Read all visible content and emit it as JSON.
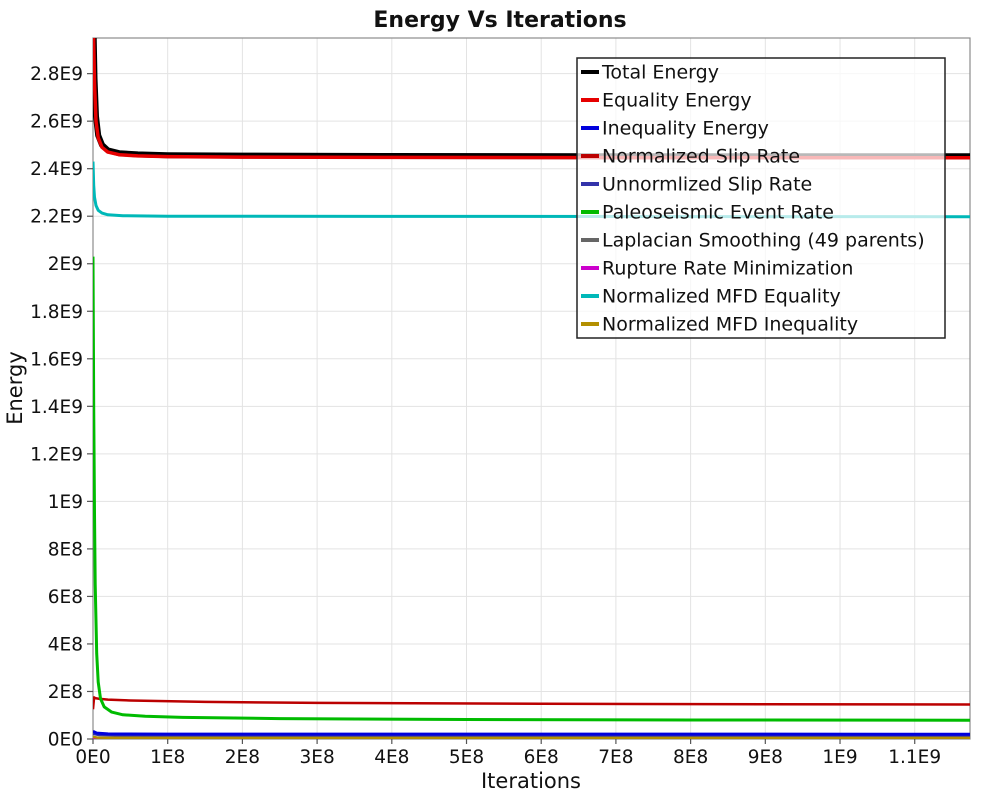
{
  "chart_data": {
    "type": "line",
    "title": "Energy Vs Iterations",
    "xlabel": "Iterations",
    "ylabel": "Energy",
    "xlim": [
      0,
      1174000000.0
    ],
    "ylim": [
      0,
      2950000000.0
    ],
    "grid": true,
    "legend_position": "top-right-inside",
    "legend_background": "rgba(255,255,255,0.72)",
    "x_ticks": [
      {
        "label": "0E0",
        "value": 0
      },
      {
        "label": "1E8",
        "value": 100000000.0
      },
      {
        "label": "2E8",
        "value": 200000000.0
      },
      {
        "label": "3E8",
        "value": 300000000.0
      },
      {
        "label": "4E8",
        "value": 400000000.0
      },
      {
        "label": "5E8",
        "value": 500000000.0
      },
      {
        "label": "6E8",
        "value": 600000000.0
      },
      {
        "label": "7E8",
        "value": 700000000.0
      },
      {
        "label": "8E8",
        "value": 800000000.0
      },
      {
        "label": "9E8",
        "value": 900000000.0
      },
      {
        "label": "1E9",
        "value": 1000000000.0
      },
      {
        "label": "1.1E9",
        "value": 1100000000.0
      }
    ],
    "y_ticks": [
      {
        "label": "0E0",
        "value": 0
      },
      {
        "label": "2E8",
        "value": 200000000.0
      },
      {
        "label": "4E8",
        "value": 400000000.0
      },
      {
        "label": "6E8",
        "value": 600000000.0
      },
      {
        "label": "8E8",
        "value": 800000000.0
      },
      {
        "label": "1E9",
        "value": 1000000000.0
      },
      {
        "label": "1.2E9",
        "value": 1200000000.0
      },
      {
        "label": "1.4E9",
        "value": 1400000000.0
      },
      {
        "label": "1.6E9",
        "value": 1600000000.0
      },
      {
        "label": "1.8E9",
        "value": 1800000000.0
      },
      {
        "label": "2E9",
        "value": 2000000000.0
      },
      {
        "label": "2.2E9",
        "value": 2200000000.0
      },
      {
        "label": "2.4E9",
        "value": 2400000000.0
      },
      {
        "label": "2.6E9",
        "value": 2600000000.0
      },
      {
        "label": "2.8E9",
        "value": 2800000000.0
      }
    ],
    "legend": [
      {
        "label": "Total Energy",
        "color": "#000000"
      },
      {
        "label": "Equality Energy",
        "color": "#e60000"
      },
      {
        "label": "Inequality Energy",
        "color": "#0000dd"
      },
      {
        "label": "Normalized Slip Rate",
        "color": "#bb0000"
      },
      {
        "label": "Unnormlized Slip Rate",
        "color": "#3333aa"
      },
      {
        "label": "Paleoseismic Event Rate",
        "color": "#00bb00"
      },
      {
        "label": "Laplacian Smoothing (49 parents)",
        "color": "#666666"
      },
      {
        "label": "Rupture Rate Minimization",
        "color": "#cc00cc"
      },
      {
        "label": "Normalized MFD Equality",
        "color": "#00b8b8"
      },
      {
        "label": "Normalized MFD Inequality",
        "color": "#b38f00"
      }
    ],
    "series": [
      {
        "name": "Laplacian Smoothing (49 parents)",
        "color": "#666666",
        "width": 2.5,
        "points": [
          [
            0,
            1200000.0
          ],
          [
            1174000000.0,
            1200000.0
          ]
        ]
      },
      {
        "name": "Rupture Rate Minimization",
        "color": "#cc00cc",
        "width": 2.5,
        "points": [
          [
            0,
            2500000.0
          ],
          [
            1174000000.0,
            2500000.0
          ]
        ]
      },
      {
        "name": "Normalized MFD Inequality",
        "color": "#b38f00",
        "width": 2.5,
        "points": [
          [
            0,
            9000000.0
          ],
          [
            6000000.0,
            6000000.0
          ],
          [
            20000000.0,
            5000000.0
          ],
          [
            1174000000.0,
            5000000.0
          ]
        ]
      },
      {
        "name": "Unnormlized Slip Rate",
        "color": "#3333aa",
        "width": 2.5,
        "points": [
          [
            0,
            22000000.0
          ],
          [
            8000000.0,
            17000000.0
          ],
          [
            30000000.0,
            15500000.0
          ],
          [
            1174000000.0,
            15000000.0
          ]
        ]
      },
      {
        "name": "Inequality Energy",
        "color": "#0000dd",
        "width": 3,
        "points": [
          [
            0,
            32000000.0
          ],
          [
            5000000.0,
            25000000.0
          ],
          [
            20000000.0,
            21500000.0
          ],
          [
            100000000.0,
            20500000.0
          ],
          [
            1174000000.0,
            20000000.0
          ]
        ]
      },
      {
        "name": "Normalized Slip Rate",
        "color": "#bb0000",
        "width": 2.5,
        "points": [
          [
            0,
            125000000.0
          ],
          [
            1500000.0,
            175000000.0
          ],
          [
            3000000.0,
            172000000.0
          ],
          [
            8000000.0,
            169000000.0
          ],
          [
            20000000.0,
            166000000.0
          ],
          [
            50000000.0,
            162000000.0
          ],
          [
            150000000.0,
            156000000.0
          ],
          [
            300000000.0,
            152000000.0
          ],
          [
            600000000.0,
            148000000.0
          ],
          [
            900000000.0,
            146000000.0
          ],
          [
            1174000000.0,
            145000000.0
          ]
        ]
      },
      {
        "name": "Paleoseismic Event Rate",
        "color": "#00bb00",
        "width": 3,
        "points": [
          [
            0,
            2030000000.0
          ],
          [
            1000000.0,
            1400000000.0
          ],
          [
            2000000.0,
            950000000.0
          ],
          [
            3000000.0,
            650000000.0
          ],
          [
            5000000.0,
            360000000.0
          ],
          [
            7000000.0,
            240000000.0
          ],
          [
            10000000.0,
            170000000.0
          ],
          [
            15000000.0,
            135000000.0
          ],
          [
            25000000.0,
            113000000.0
          ],
          [
            40000000.0,
            102000000.0
          ],
          [
            70000000.0,
            96000000.0
          ],
          [
            120000000.0,
            91000000.0
          ],
          [
            250000000.0,
            86000000.0
          ],
          [
            500000000.0,
            82000000.0
          ],
          [
            800000000.0,
            80000000.0
          ],
          [
            1174000000.0,
            79000000.0
          ]
        ]
      },
      {
        "name": "Normalized MFD Equality",
        "color": "#00b8b8",
        "width": 3,
        "points": [
          [
            0,
            2430000000.0
          ],
          [
            1000000.0,
            2330000000.0
          ],
          [
            2000000.0,
            2280000000.0
          ],
          [
            4000000.0,
            2245000000.0
          ],
          [
            7000000.0,
            2225000000.0
          ],
          [
            12000000.0,
            2213000000.0
          ],
          [
            20000000.0,
            2206000000.0
          ],
          [
            40000000.0,
            2202000000.0
          ],
          [
            100000000.0,
            2200000000.0
          ],
          [
            1174000000.0,
            2198000000.0
          ]
        ]
      },
      {
        "name": "Total Energy",
        "color": "#000000",
        "width": 6,
        "points": [
          [
            0,
            3300000000.0
          ],
          [
            1000000.0,
            2950000000.0
          ],
          [
            2000000.0,
            2780000000.0
          ],
          [
            4000000.0,
            2620000000.0
          ],
          [
            7000000.0,
            2540000000.0
          ],
          [
            12000000.0,
            2500000000.0
          ],
          [
            20000000.0,
            2477000000.0
          ],
          [
            35000000.0,
            2465000000.0
          ],
          [
            60000000.0,
            2460000000.0
          ],
          [
            100000000.0,
            2457000000.0
          ],
          [
            200000000.0,
            2455000000.0
          ],
          [
            400000000.0,
            2453500000.0
          ],
          [
            700000000.0,
            2452500000.0
          ],
          [
            1174000000.0,
            2452000000.0
          ]
        ]
      },
      {
        "name": "Equality Energy",
        "color": "#e60000",
        "width": 3.5,
        "points": [
          [
            0,
            3280000000.0
          ],
          [
            1000000.0,
            2930000000.0
          ],
          [
            2000000.0,
            2760000000.0
          ],
          [
            4000000.0,
            2600000000.0
          ],
          [
            7000000.0,
            2530000000.0
          ],
          [
            12000000.0,
            2490000000.0
          ],
          [
            20000000.0,
            2470000000.0
          ],
          [
            35000000.0,
            2459000000.0
          ],
          [
            60000000.0,
            2454000000.0
          ],
          [
            100000000.0,
            2451000000.0
          ],
          [
            200000000.0,
            2449000000.0
          ],
          [
            400000000.0,
            2447500000.0
          ],
          [
            700000000.0,
            2446500000.0
          ],
          [
            1174000000.0,
            2446000000.0
          ]
        ]
      }
    ]
  }
}
